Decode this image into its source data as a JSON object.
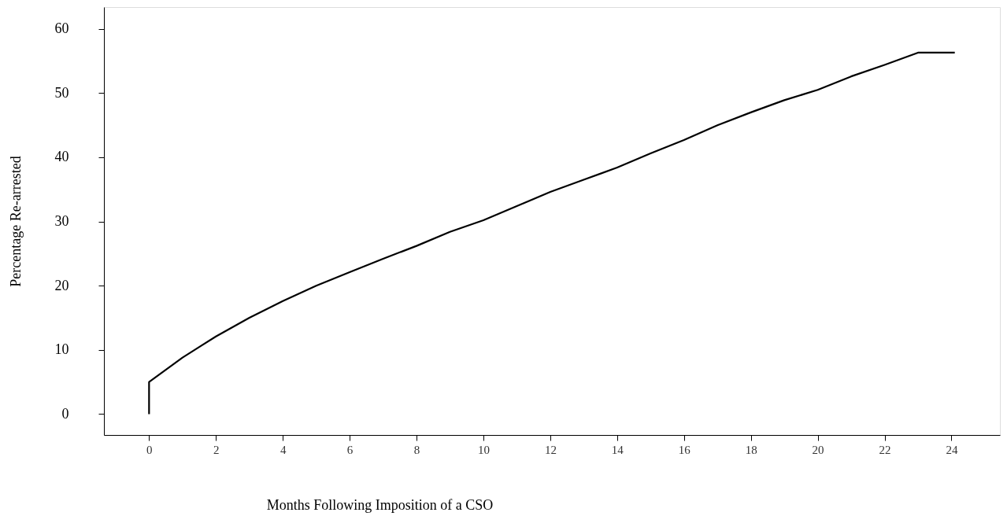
{
  "chart_data": {
    "type": "line",
    "xlabel": "Months Following Imposition of a CSO",
    "ylabel": "Percentage Re-arrested",
    "x": [
      0,
      0,
      1,
      2,
      3,
      4,
      5,
      6,
      7,
      8,
      9,
      10,
      11,
      12,
      13,
      14,
      15,
      16,
      17,
      18,
      19,
      20,
      21,
      22,
      23,
      24.1
    ],
    "values": [
      0,
      5.0,
      8.8,
      12.1,
      15.0,
      17.6,
      20.0,
      22.1,
      24.2,
      26.2,
      28.4,
      30.2,
      32.4,
      34.6,
      36.5,
      38.4,
      40.6,
      42.7,
      45.0,
      47.0,
      48.9,
      50.5,
      52.6,
      54.4,
      56.3,
      56.3
    ],
    "color": "#000000",
    "line_style": "solid",
    "xlim": [
      -1.35,
      25.45
    ],
    "ylim": [
      -3.25,
      63.4
    ],
    "xticks": [
      0,
      2,
      4,
      6,
      8,
      10,
      12,
      14,
      16,
      18,
      20,
      22,
      24
    ],
    "yticks": [
      0,
      10,
      20,
      30,
      40,
      50,
      60
    ]
  }
}
